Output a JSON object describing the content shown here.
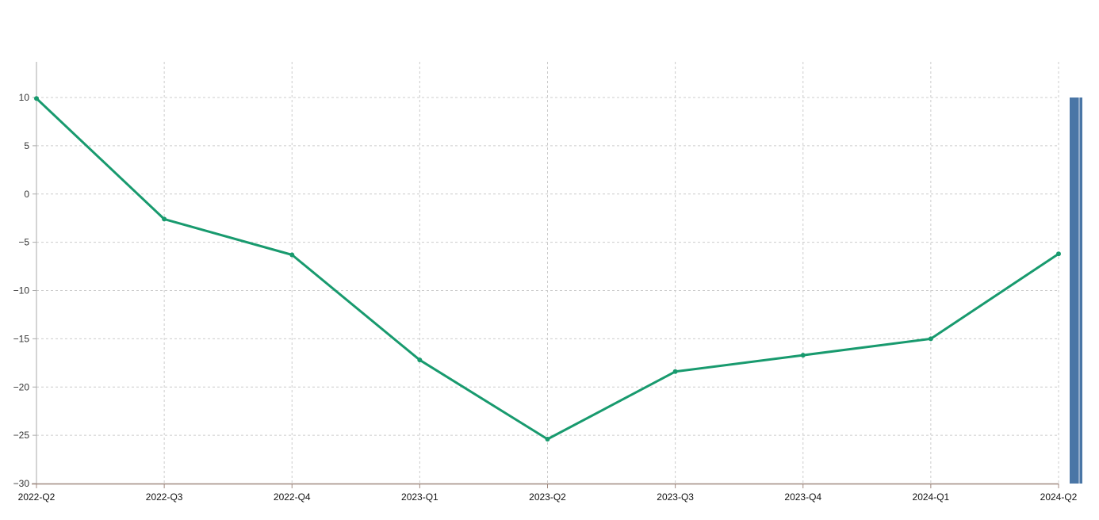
{
  "chart_data": {
    "type": "line",
    "title": "",
    "xlabel": "",
    "ylabel": "",
    "categories": [
      "2022-Q2",
      "2022-Q3",
      "2022-Q4",
      "2023-Q1",
      "2023-Q2",
      "2023-Q3",
      "2023-Q4",
      "2024-Q1",
      "2024-Q2"
    ],
    "series": [
      {
        "values": [
          9.9,
          -2.6,
          -6.3,
          -17.2,
          -25.4,
          -18.4,
          -16.7,
          -15.0,
          -6.2
        ],
        "color": "#189a6e"
      }
    ],
    "ylim": [
      -30,
      14
    ],
    "yticks": [
      10,
      5,
      0,
      -5,
      -10,
      -15,
      -20,
      -25,
      -30
    ],
    "grid": true,
    "side_bar": {
      "value_range": [
        -30,
        10
      ],
      "color": "#4a76a6"
    },
    "colors": {
      "grid": "#cccccc",
      "x_axis": "#a08a80",
      "y_axis": "#aaaaaa"
    }
  }
}
